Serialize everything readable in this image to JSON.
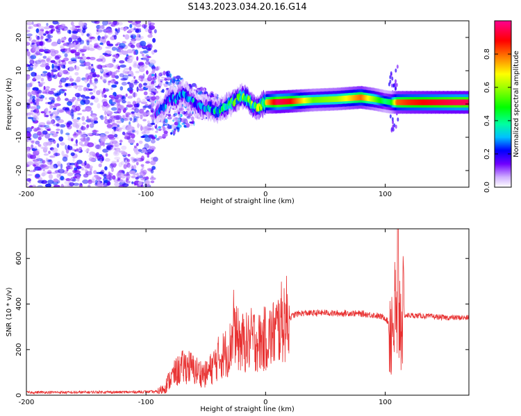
{
  "title": "S143.2023.034.20.16.G14",
  "chart_data": [
    {
      "type": "heatmap",
      "xlabel": "Height of straight line (km)",
      "ylabel": "Frequency (Hz)",
      "xlim": [
        -200,
        170
      ],
      "ylim": [
        -25,
        25
      ],
      "xticks": [
        -200,
        -100,
        0,
        100
      ],
      "yticks": [
        -20,
        -10,
        0,
        10,
        20
      ],
      "colorbar": {
        "label": "Normalized spectral amplitude",
        "range": [
          0,
          1
        ],
        "ticks": [
          "0.0",
          "0.2",
          "0.4",
          "0.6",
          "0.8"
        ],
        "colors": [
          "#ffffff",
          "#b080ff",
          "#7000ff",
          "#0000ff",
          "#00ffff",
          "#00ff00",
          "#ffff00",
          "#ff8000",
          "#ff0000",
          "#ff00a0"
        ]
      },
      "ridge": {
        "x": [
          -92,
          -85,
          -80,
          -75,
          -70,
          -65,
          -60,
          -55,
          -50,
          -45,
          -40,
          -35,
          -30,
          -25,
          -20,
          -15,
          -10,
          -5,
          0,
          10,
          20,
          40,
          60,
          80,
          90,
          100,
          105,
          110,
          120,
          140,
          160,
          170
        ],
        "y": [
          -2.5,
          -1,
          2,
          1.5,
          3,
          2,
          0.5,
          -1,
          -1,
          -1.5,
          -2,
          -1,
          0,
          1,
          2.5,
          1.5,
          -1,
          -0.8,
          0.5,
          0.6,
          0.8,
          1.2,
          1.5,
          2,
          1.5,
          0.8,
          0.5,
          0.5,
          0.5,
          0.5,
          0.5,
          0.5
        ],
        "amplitude": [
          0.2,
          0.25,
          0.25,
          0.3,
          0.3,
          0.3,
          0.3,
          0.25,
          0.3,
          0.35,
          0.35,
          0.4,
          0.45,
          0.45,
          0.5,
          0.5,
          0.5,
          0.55,
          0.7,
          0.95,
          0.9,
          0.55,
          0.6,
          0.8,
          0.6,
          0.4,
          0.45,
          0.8,
          0.85,
          0.9,
          0.95,
          0.95
        ]
      }
    },
    {
      "type": "line",
      "xlabel": "Height of straight line (km)",
      "ylabel": "SNR (10 * v/v)",
      "xlim": [
        -200,
        170
      ],
      "ylim": [
        0,
        730
      ],
      "xticks": [
        -200,
        -100,
        0,
        100
      ],
      "yticks": [
        0,
        200,
        400,
        600
      ],
      "color": "#e83030",
      "series": [
        {
          "x": [
            -200,
            -180,
            -160,
            -140,
            -120,
            -100,
            -90,
            -85,
            -80,
            -75,
            -70,
            -65,
            -60,
            -55,
            -50,
            -45,
            -40,
            -35,
            -30,
            -27,
            -25,
            -20,
            -15,
            -10,
            -5,
            0,
            5,
            10,
            15,
            20,
            25,
            30,
            40,
            50,
            60,
            70,
            80,
            90,
            100,
            105,
            108,
            110,
            112,
            115,
            120,
            130,
            140,
            150,
            160,
            170
          ],
          "y": [
            12,
            13,
            12,
            14,
            13,
            15,
            15,
            30,
            70,
            100,
            120,
            130,
            110,
            100,
            90,
            120,
            160,
            180,
            200,
            300,
            250,
            230,
            230,
            250,
            230,
            250,
            260,
            290,
            330,
            340,
            355,
            360,
            360,
            362,
            358,
            360,
            357,
            352,
            340,
            300,
            350,
            330,
            345,
            350,
            350,
            348,
            345,
            340,
            340,
            340
          ]
        }
      ]
    }
  ]
}
